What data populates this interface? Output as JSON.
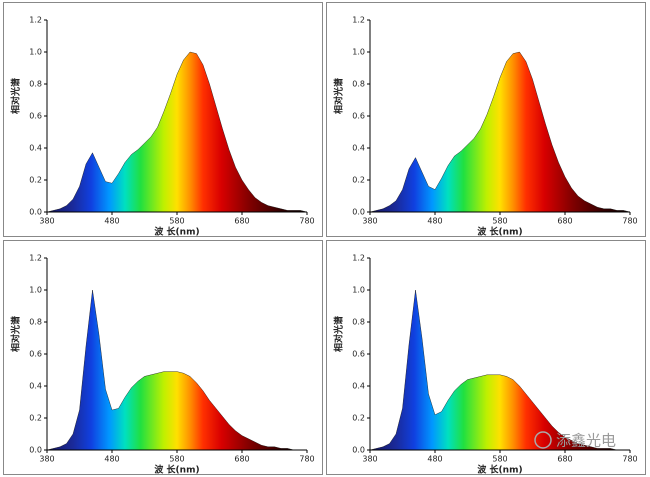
{
  "chart_data": [
    {
      "type": "area",
      "y_label": "相对光谱",
      "x_label": "波 长(nm)",
      "x": [
        380,
        390,
        400,
        410,
        420,
        430,
        440,
        450,
        460,
        470,
        480,
        490,
        500,
        510,
        520,
        530,
        540,
        550,
        560,
        570,
        580,
        590,
        600,
        610,
        620,
        630,
        640,
        650,
        660,
        670,
        680,
        690,
        700,
        710,
        720,
        730,
        740,
        750,
        760,
        770,
        780
      ],
      "values": [
        0,
        0.01,
        0.02,
        0.04,
        0.08,
        0.16,
        0.3,
        0.37,
        0.28,
        0.19,
        0.18,
        0.24,
        0.31,
        0.36,
        0.39,
        0.43,
        0.47,
        0.53,
        0.63,
        0.74,
        0.86,
        0.95,
        1.0,
        0.99,
        0.92,
        0.8,
        0.66,
        0.52,
        0.39,
        0.28,
        0.2,
        0.14,
        0.09,
        0.06,
        0.04,
        0.03,
        0.02,
        0.01,
        0.01,
        0.01,
        0
      ],
      "xlim": [
        380,
        780
      ],
      "xticks": [
        380,
        480,
        580,
        680,
        780
      ],
      "ylim": [
        0,
        1.2
      ],
      "yticks": [
        {
          "value": 0,
          "label": "0.0"
        },
        0.2,
        0.4,
        0.6,
        0.8,
        {
          "value": 1,
          "label": "1.0"
        },
        1.2
      ]
    },
    {
      "type": "area",
      "y_label": "相对光谱",
      "x_label": "波 长(nm)",
      "x": [
        380,
        390,
        400,
        410,
        420,
        430,
        440,
        450,
        460,
        470,
        480,
        490,
        500,
        510,
        520,
        530,
        540,
        550,
        560,
        570,
        580,
        590,
        600,
        610,
        620,
        630,
        640,
        650,
        660,
        670,
        680,
        690,
        700,
        710,
        720,
        730,
        740,
        750,
        760,
        770,
        780
      ],
      "values": [
        0,
        0.01,
        0.02,
        0.04,
        0.07,
        0.14,
        0.27,
        0.34,
        0.25,
        0.16,
        0.14,
        0.21,
        0.29,
        0.35,
        0.38,
        0.42,
        0.46,
        0.52,
        0.61,
        0.72,
        0.84,
        0.94,
        0.99,
        1.0,
        0.94,
        0.83,
        0.69,
        0.55,
        0.42,
        0.31,
        0.22,
        0.15,
        0.1,
        0.07,
        0.05,
        0.03,
        0.02,
        0.02,
        0.01,
        0.01,
        0
      ],
      "xlim": [
        380,
        780
      ],
      "xticks": [
        380,
        480,
        580,
        680,
        780
      ],
      "ylim": [
        0,
        1.2
      ],
      "yticks": [
        {
          "value": 0,
          "label": "0.0"
        },
        0.2,
        0.4,
        0.6,
        0.8,
        {
          "value": 1,
          "label": "1.0"
        },
        1.2
      ]
    },
    {
      "type": "area",
      "y_label": "相对光谱",
      "x_label": "波 长(nm)",
      "x": [
        380,
        390,
        400,
        410,
        420,
        430,
        440,
        450,
        460,
        470,
        480,
        490,
        500,
        510,
        520,
        530,
        540,
        550,
        560,
        570,
        580,
        590,
        600,
        610,
        620,
        630,
        640,
        650,
        660,
        670,
        680,
        690,
        700,
        710,
        720,
        730,
        740,
        750,
        760,
        770,
        780
      ],
      "values": [
        0,
        0.01,
        0.02,
        0.04,
        0.1,
        0.25,
        0.65,
        1.0,
        0.72,
        0.38,
        0.25,
        0.26,
        0.33,
        0.39,
        0.43,
        0.46,
        0.47,
        0.48,
        0.49,
        0.49,
        0.49,
        0.48,
        0.46,
        0.42,
        0.37,
        0.31,
        0.26,
        0.21,
        0.16,
        0.12,
        0.09,
        0.07,
        0.05,
        0.03,
        0.02,
        0.02,
        0.01,
        0.01,
        0,
        0,
        0
      ],
      "xlim": [
        380,
        780
      ],
      "xticks": [
        380,
        480,
        580,
        680,
        780
      ],
      "ylim": [
        0,
        1.2
      ],
      "yticks": [
        {
          "value": 0,
          "label": "0.0"
        },
        0.2,
        0.4,
        0.6,
        0.8,
        {
          "value": 1,
          "label": "1.0"
        },
        1.2
      ]
    },
    {
      "type": "area",
      "y_label": "相对光谱",
      "x_label": "波 长(nm)",
      "x": [
        380,
        390,
        400,
        410,
        420,
        430,
        440,
        450,
        460,
        470,
        480,
        490,
        500,
        510,
        520,
        530,
        540,
        550,
        560,
        570,
        580,
        590,
        600,
        610,
        620,
        630,
        640,
        650,
        660,
        670,
        680,
        690,
        700,
        710,
        720,
        730,
        740,
        750,
        760,
        770,
        780
      ],
      "values": [
        0,
        0.01,
        0.02,
        0.04,
        0.1,
        0.26,
        0.66,
        1.0,
        0.7,
        0.35,
        0.22,
        0.24,
        0.31,
        0.37,
        0.41,
        0.44,
        0.45,
        0.46,
        0.47,
        0.47,
        0.47,
        0.46,
        0.44,
        0.4,
        0.35,
        0.3,
        0.25,
        0.2,
        0.15,
        0.11,
        0.08,
        0.06,
        0.04,
        0.03,
        0.02,
        0.01,
        0.01,
        0.01,
        0,
        0,
        0
      ],
      "xlim": [
        380,
        780
      ],
      "xticks": [
        380,
        480,
        580,
        680,
        780
      ],
      "ylim": [
        0,
        1.2
      ],
      "yticks": [
        {
          "value": 0,
          "label": "0.0"
        },
        0.2,
        0.4,
        0.6,
        0.8,
        {
          "value": 1,
          "label": "1.0"
        },
        1.2
      ]
    }
  ],
  "watermark": "添鑫光电"
}
